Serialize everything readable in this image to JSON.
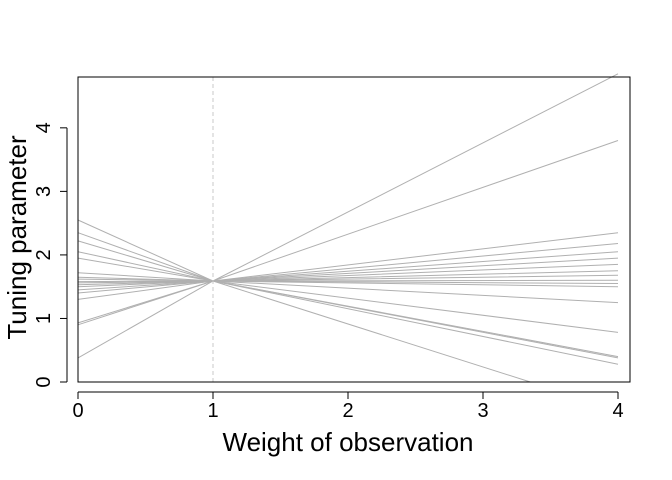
{
  "chart_data": {
    "type": "line",
    "title": "",
    "xlabel": "Weight of observation",
    "ylabel": "Tuning parameter",
    "xlim": [
      0,
      4
    ],
    "ylim": [
      0,
      4.8
    ],
    "x_ticks": [
      "0",
      "1",
      "2",
      "3",
      "4"
    ],
    "y_ticks": [
      "0",
      "1",
      "2",
      "3",
      "4"
    ],
    "grid": false,
    "reference_line": {
      "x": 1,
      "style": "dashed"
    },
    "line_color": "#b0b0b0",
    "ref_color": "#c8c8c8",
    "series": [
      {
        "x": [
          0,
          1,
          4
        ],
        "y": [
          0.38,
          1.59,
          4.85
        ]
      },
      {
        "x": [
          0,
          1,
          4
        ],
        "y": [
          0.9,
          1.59,
          3.8
        ]
      },
      {
        "x": [
          0,
          1,
          4
        ],
        "y": [
          0.93,
          1.59,
          2.35
        ]
      },
      {
        "x": [
          0,
          1,
          4
        ],
        "y": [
          1.3,
          1.59,
          2.18
        ]
      },
      {
        "x": [
          0,
          1,
          4
        ],
        "y": [
          1.4,
          1.59,
          2.05
        ]
      },
      {
        "x": [
          0,
          1,
          4
        ],
        "y": [
          1.45,
          1.59,
          1.95
        ]
      },
      {
        "x": [
          0,
          1,
          4
        ],
        "y": [
          1.5,
          1.59,
          1.85
        ]
      },
      {
        "x": [
          0,
          1,
          4
        ],
        "y": [
          1.53,
          1.59,
          1.75
        ]
      },
      {
        "x": [
          0,
          1,
          4
        ],
        "y": [
          1.56,
          1.59,
          1.68
        ]
      },
      {
        "x": [
          0,
          1,
          4
        ],
        "y": [
          1.58,
          1.59,
          1.6
        ]
      },
      {
        "x": [
          0,
          1,
          4
        ],
        "y": [
          1.62,
          1.59,
          1.55
        ]
      },
      {
        "x": [
          0,
          1,
          4
        ],
        "y": [
          1.65,
          1.59,
          1.5
        ]
      },
      {
        "x": [
          0,
          1,
          4
        ],
        "y": [
          1.72,
          1.59,
          1.25
        ]
      },
      {
        "x": [
          0,
          1,
          4
        ],
        "y": [
          1.95,
          1.59,
          0.78
        ]
      },
      {
        "x": [
          0,
          1,
          4
        ],
        "y": [
          2.05,
          1.59,
          0.4
        ]
      },
      {
        "x": [
          0,
          1,
          4
        ],
        "y": [
          2.22,
          1.59,
          0.28
        ]
      },
      {
        "x": [
          0,
          1,
          4
        ],
        "y": [
          2.35,
          1.59,
          0.38
        ]
      },
      {
        "x": [
          0,
          1,
          3.35
        ],
        "y": [
          2.55,
          1.59,
          0.0
        ]
      }
    ]
  }
}
